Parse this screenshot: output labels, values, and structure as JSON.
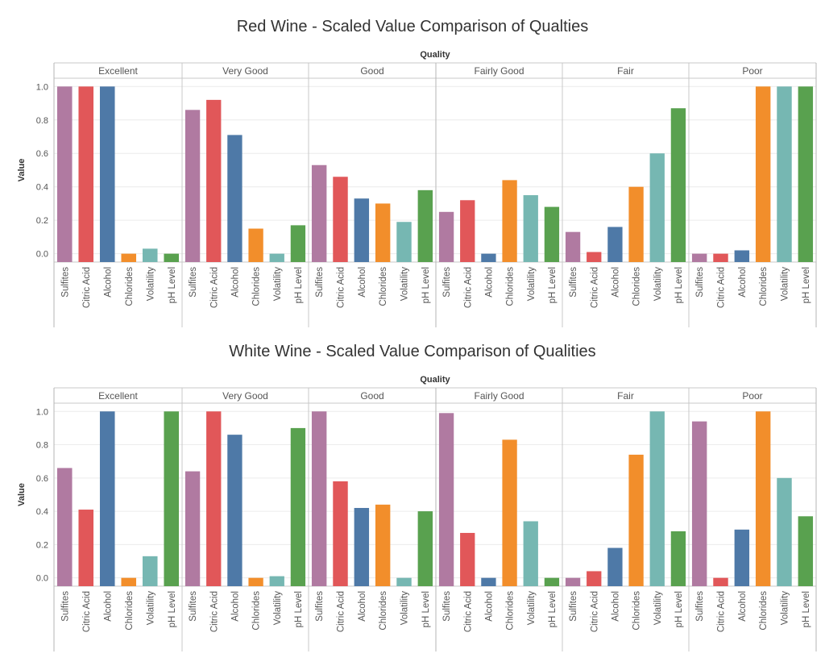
{
  "chart_data": [
    {
      "type": "bar",
      "title": "Red Wine - Scaled Value Comparison of Qualties",
      "column_header": "Quality",
      "ylabel": "Value",
      "ylim": [
        -0.05,
        1.04
      ],
      "yticks": [
        "0.0",
        "0.2",
        "0.4",
        "0.6",
        "0.8",
        "1.0"
      ],
      "categories": [
        "Sulfites",
        "Citric Acid",
        "Alcohol",
        "Chlorides",
        "Volatility",
        "pH Level"
      ],
      "panels": [
        {
          "name": "Excellent",
          "values": [
            1.0,
            1.0,
            1.0,
            0.0,
            0.03,
            0.0
          ]
        },
        {
          "name": "Very Good",
          "values": [
            0.86,
            0.92,
            0.71,
            0.15,
            0.0,
            0.17
          ]
        },
        {
          "name": "Good",
          "values": [
            0.53,
            0.46,
            0.33,
            0.3,
            0.19,
            0.38
          ]
        },
        {
          "name": "Fairly Good",
          "values": [
            0.25,
            0.32,
            0.0,
            0.44,
            0.35,
            0.28
          ]
        },
        {
          "name": "Fair",
          "values": [
            0.13,
            0.01,
            0.16,
            0.4,
            0.6,
            0.87
          ]
        },
        {
          "name": "Poor",
          "values": [
            0.0,
            0.0,
            0.02,
            1.0,
            1.0,
            1.0
          ]
        }
      ]
    },
    {
      "type": "bar",
      "title": "White Wine - Scaled Value Comparison of Qualities",
      "column_header": "Quality",
      "ylabel": "Value",
      "ylim": [
        -0.05,
        1.04
      ],
      "yticks": [
        "0.0",
        "0.2",
        "0.4",
        "0.6",
        "0.8",
        "1.0"
      ],
      "categories": [
        "Sulfites",
        "Citric Acid",
        "Alcohol",
        "Chlorides",
        "Volatility",
        "pH Level"
      ],
      "panels": [
        {
          "name": "Excellent",
          "values": [
            0.66,
            0.41,
            1.0,
            0.0,
            0.13,
            1.0
          ]
        },
        {
          "name": "Very Good",
          "values": [
            0.64,
            1.0,
            0.86,
            0.0,
            0.01,
            0.9
          ]
        },
        {
          "name": "Good",
          "values": [
            1.0,
            0.58,
            0.42,
            0.44,
            0.0,
            0.4
          ]
        },
        {
          "name": "Fairly Good",
          "values": [
            0.99,
            0.27,
            0.0,
            0.83,
            0.34,
            0.0
          ]
        },
        {
          "name": "Fair",
          "values": [
            0.0,
            0.04,
            0.18,
            0.74,
            1.0,
            0.28
          ]
        },
        {
          "name": "Poor",
          "values": [
            0.94,
            0.0,
            0.29,
            1.0,
            0.6,
            0.37
          ]
        }
      ]
    }
  ],
  "colors": {
    "Sulfites": "#b07aa1",
    "Citric Acid": "#e15759",
    "Alcohol": "#4e79a7",
    "Chlorides": "#f28e2b",
    "Volatility": "#76b7b2",
    "pH Level": "#59a14f",
    "title": "#333333",
    "text": "#555555",
    "rule": "#c8c8c8",
    "grid": "#ececec"
  }
}
